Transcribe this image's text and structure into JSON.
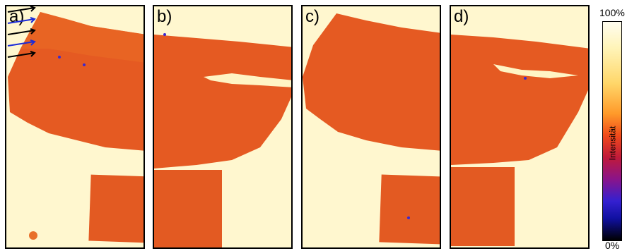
{
  "panels": [
    {
      "label": "a)"
    },
    {
      "label": "b)"
    },
    {
      "label": "c)"
    },
    {
      "label": "d)"
    }
  ],
  "colorbar": {
    "max_label": "100%",
    "min_label": "0%",
    "title": "Intensität"
  },
  "colors": {
    "background": "#fff7cf",
    "sample": "#e8501e",
    "arrow_black": "#000000",
    "arrow_blue": "#1a2bd8"
  },
  "arrow_colors": [
    "black",
    "blue",
    "black",
    "blue",
    "black"
  ]
}
